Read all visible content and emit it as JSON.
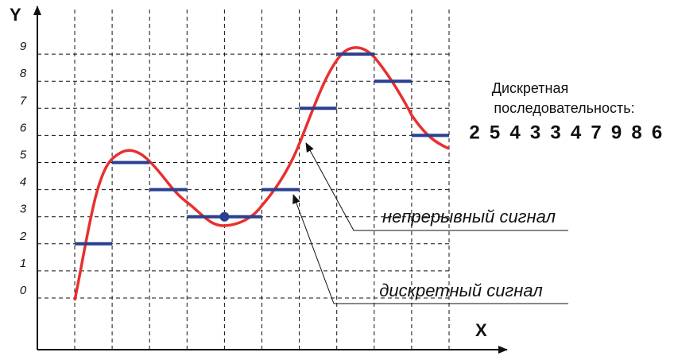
{
  "axes": {
    "y_label": "Y",
    "x_label": "X",
    "y_ticks": [
      0,
      1,
      2,
      3,
      4,
      5,
      6,
      7,
      8,
      9
    ]
  },
  "annotations": {
    "continuous": "непрерывный сигнал",
    "discrete": "дискретный сигнал"
  },
  "sequence": {
    "title_line1": "Дискретная",
    "title_line2": "последовательность:",
    "values": [
      2,
      5,
      4,
      3,
      3,
      4,
      7,
      9,
      8,
      6
    ]
  }
}
